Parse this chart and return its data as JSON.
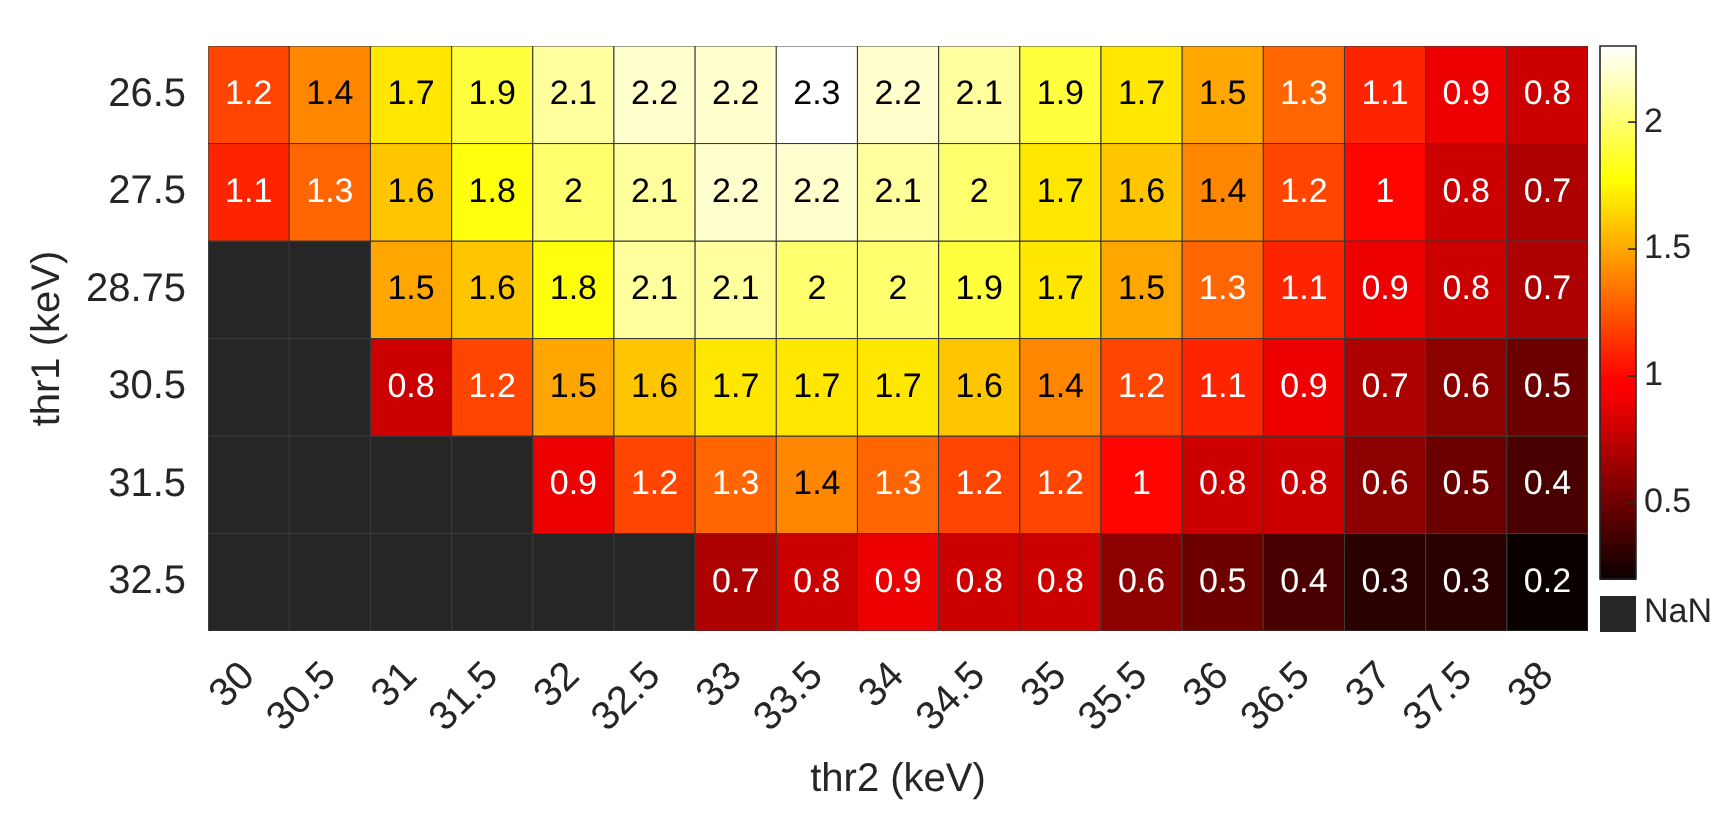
{
  "chart_data": {
    "type": "heatmap",
    "xlabel": "thr2 (keV)",
    "ylabel": "thr1 (keV)",
    "categories": [
      "30",
      "30.5",
      "31",
      "31.5",
      "32",
      "32.5",
      "33",
      "33.5",
      "34",
      "34.5",
      "35",
      "35.5",
      "36",
      "36.5",
      "37",
      "37.5",
      "38"
    ],
    "y_categories": [
      "26.5",
      "27.5",
      "28.75",
      "30.5",
      "31.5",
      "32.5"
    ],
    "cells": [
      [
        1.2,
        1.4,
        1.7,
        1.9,
        2.1,
        2.2,
        2.2,
        2.3,
        2.2,
        2.1,
        1.9,
        1.7,
        1.5,
        1.3,
        1.1,
        0.9,
        0.8
      ],
      [
        1.1,
        1.3,
        1.6,
        1.8,
        2,
        2.1,
        2.2,
        2.2,
        2.1,
        2,
        1.7,
        1.6,
        1.4,
        1.2,
        1,
        0.8,
        0.7
      ],
      [
        null,
        null,
        1.5,
        1.6,
        1.8,
        2.1,
        2.1,
        2,
        2,
        1.9,
        1.7,
        1.5,
        1.3,
        1.1,
        0.9,
        0.8,
        0.7
      ],
      [
        null,
        null,
        0.8,
        1.2,
        1.5,
        1.6,
        1.7,
        1.7,
        1.7,
        1.6,
        1.4,
        1.2,
        1.1,
        0.9,
        0.7,
        0.6,
        0.5
      ],
      [
        null,
        null,
        null,
        null,
        0.9,
        1.2,
        1.3,
        1.4,
        1.3,
        1.2,
        1.2,
        1,
        0.8,
        0.8,
        0.6,
        0.5,
        0.4
      ],
      [
        null,
        null,
        null,
        null,
        null,
        null,
        0.7,
        0.8,
        0.9,
        0.8,
        0.8,
        0.6,
        0.5,
        0.4,
        0.3,
        0.3,
        0.2
      ]
    ],
    "clim": [
      0.2,
      2.3
    ],
    "cticks": [
      0.5,
      1,
      1.5,
      2
    ],
    "data_labels": true,
    "annotations": [
      "NaN"
    ]
  }
}
